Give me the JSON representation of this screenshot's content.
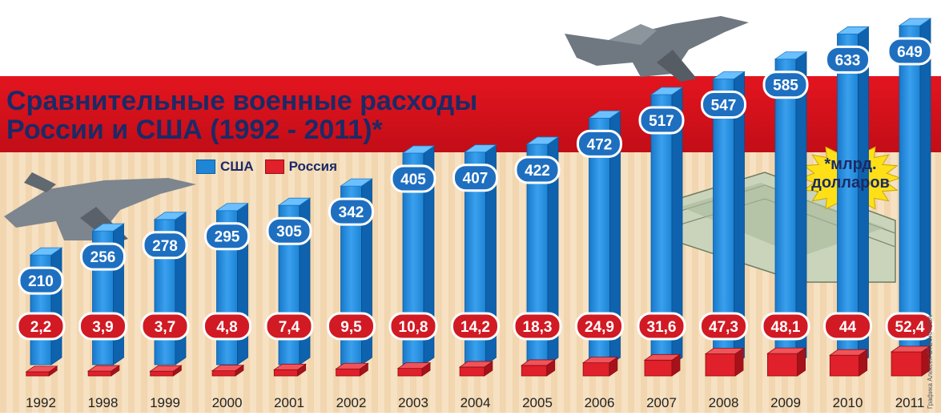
{
  "title_line1": "Сравнительные военные расходы",
  "title_line2": "России и США (1992 - 2011)*",
  "legend": {
    "us": "США",
    "russia": "Россия"
  },
  "unit_note": "*млрд. долларов",
  "credit": "Графика Алексея СТЕФАНОВА",
  "colors": {
    "us": "#1f86d6",
    "russia": "#e0202a",
    "banner": "#d7111c",
    "background": "#f6e1c2"
  },
  "chart_data": {
    "type": "bar",
    "categories": [
      "1992",
      "1998",
      "1999",
      "2000",
      "2001",
      "2002",
      "2003",
      "2004",
      "2005",
      "2006",
      "2007",
      "2008",
      "2009",
      "2010",
      "2011"
    ],
    "series": [
      {
        "name": "США",
        "values": [
          210,
          256,
          278,
          295,
          305,
          342,
          405,
          407,
          422,
          472,
          517,
          547,
          585,
          633,
          649
        ],
        "labels": [
          "210",
          "256",
          "278",
          "295",
          "305",
          "342",
          "405",
          "407",
          "422",
          "472",
          "517",
          "547",
          "585",
          "633",
          "649"
        ]
      },
      {
        "name": "Россия",
        "values": [
          2.2,
          3.9,
          3.7,
          4.8,
          7.4,
          9.5,
          10.8,
          14.2,
          18.3,
          24.9,
          31.6,
          47.3,
          48.1,
          44,
          52.4
        ],
        "labels": [
          "2,2",
          "3,9",
          "3,7",
          "4,8",
          "7,4",
          "9,5",
          "10,8",
          "14,2",
          "18,3",
          "24,9",
          "31,6",
          "47,3",
          "48,1",
          "44",
          "52,4"
        ]
      }
    ]
  }
}
